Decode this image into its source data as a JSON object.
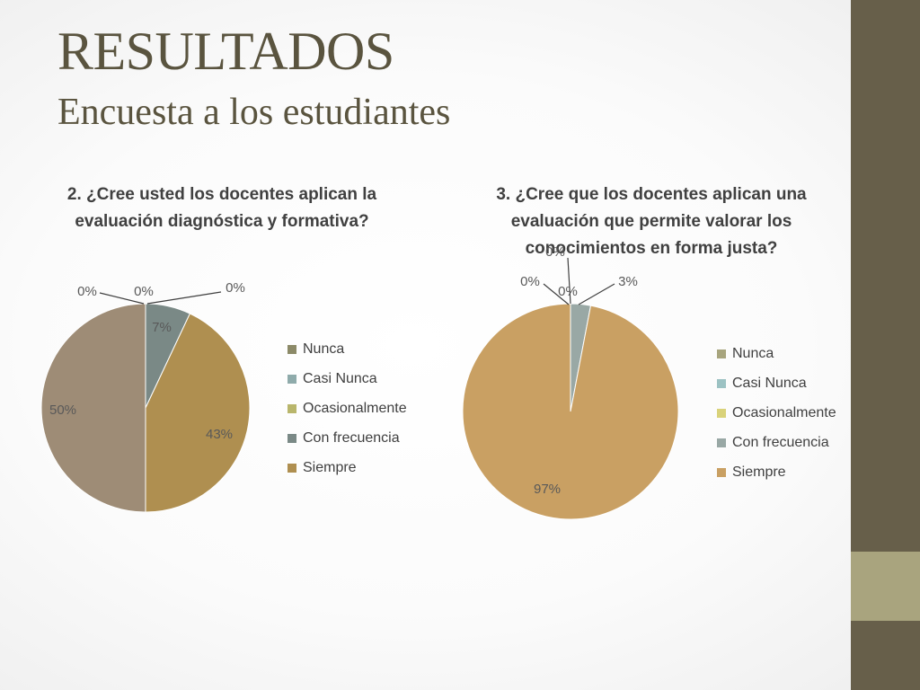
{
  "slide": {
    "title": "RESULTADOS",
    "subtitle": "Encuesta a los estudiantes",
    "colors": {
      "sidebar": "#675f4a",
      "sidebar_accent": "#a9a47e",
      "title": "#5a543f"
    }
  },
  "chart_data": [
    {
      "type": "pie",
      "title": "2. ¿Cree usted los docentes aplican la evaluación diagnóstica y formativa?",
      "categories": [
        "Nunca",
        "Casi Nunca",
        "Ocasionalmente",
        "Con frecuencia",
        "Siempre",
        ""
      ],
      "values": [
        0,
        0,
        0,
        7,
        43,
        50
      ],
      "labels": [
        "0%",
        "0%",
        "0%",
        "7%",
        "43%",
        "50%"
      ],
      "colors": [
        "#8c8a68",
        "#8fabab",
        "#b9b66c",
        "#7a8986",
        "#af8f50",
        "#9e8c76"
      ],
      "legend": [
        "Nunca",
        "Casi Nunca",
        "Ocasionalmente",
        "Con frecuencia",
        "Siempre"
      ],
      "legend_position": "right"
    },
    {
      "type": "pie",
      "title": "3. ¿Cree que los docentes aplican una evaluación que permite valorar los conocimientos en forma justa?",
      "categories": [
        "Nunca",
        "Casi Nunca",
        "Ocasionalmente",
        "Con frecuencia",
        "Siempre"
      ],
      "values": [
        0,
        0,
        0,
        3,
        97
      ],
      "labels": [
        "0%",
        "0%",
        "0%",
        "3%",
        "97%"
      ],
      "colors": [
        "#a8a57e",
        "#9cc2c3",
        "#d9d27a",
        "#99a8a5",
        "#c9a063"
      ],
      "legend": [
        "Nunca",
        "Casi Nunca",
        "Ocasionalmente",
        "Con frecuencia",
        "Siempre"
      ],
      "legend_position": "right"
    }
  ]
}
